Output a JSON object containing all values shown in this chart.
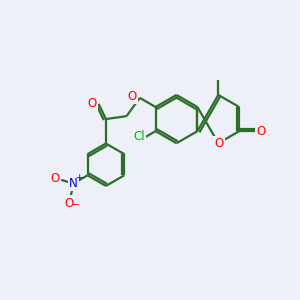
{
  "bg_color": "#edf1f7",
  "bond_color": "#2d6e2d",
  "bond_width": 1.6,
  "atom_colors": {
    "O": "#ff0000",
    "N": "#0000cc",
    "Cl": "#00bb00",
    "C": "#2d6e2d"
  }
}
